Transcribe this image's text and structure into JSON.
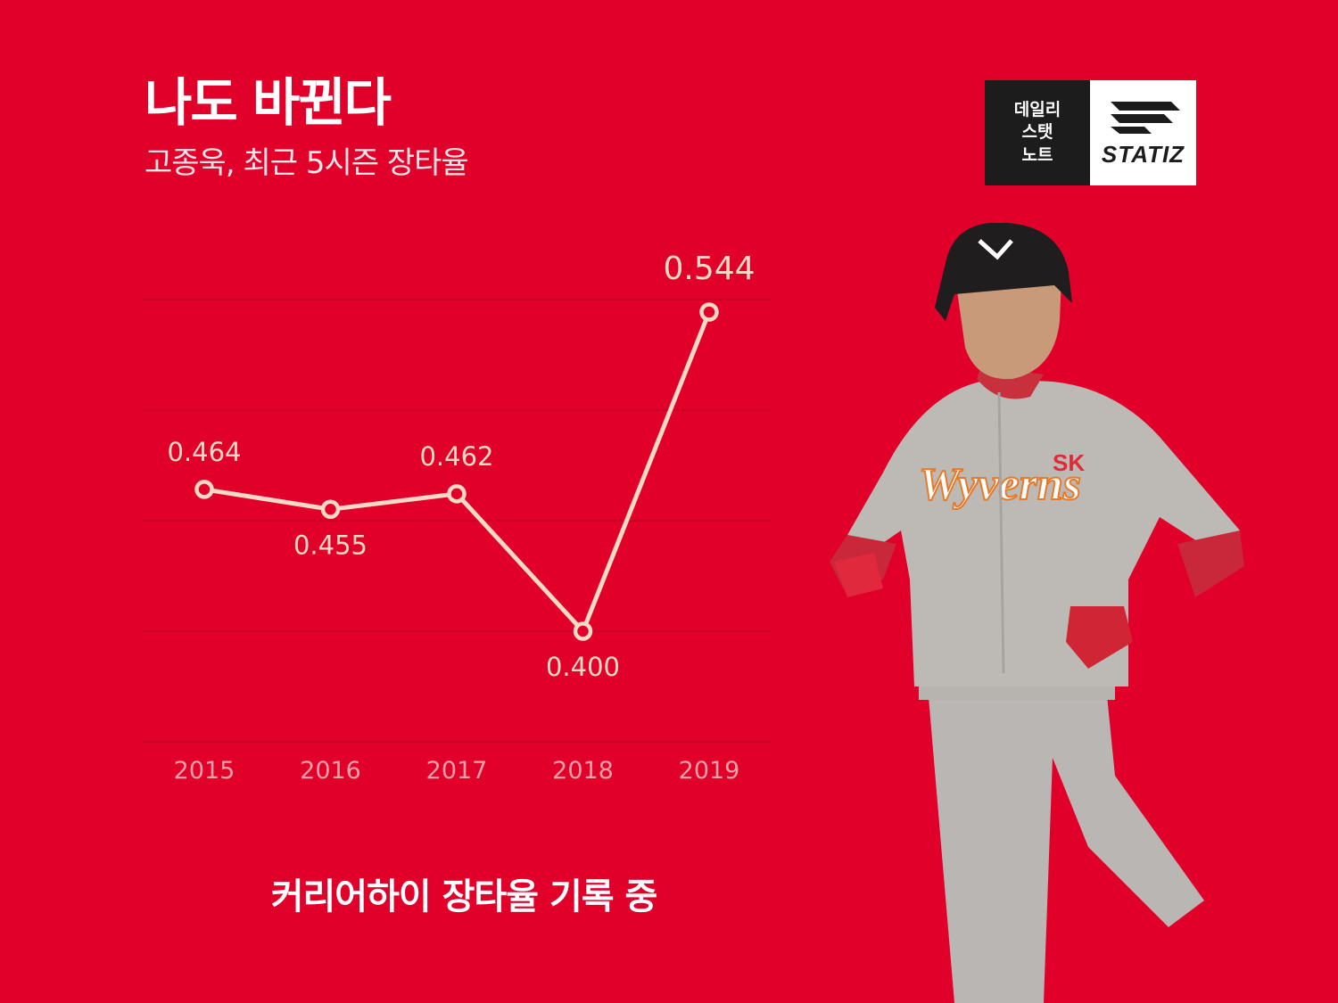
{
  "header": {
    "title": "나도 바뀐다",
    "subtitle": "고종욱, 최근 5시즌 장타율"
  },
  "logo": {
    "text_lines": [
      "데일리",
      "스탯",
      "노트"
    ],
    "brand": "STATIZ"
  },
  "caption": "커리어하이 장타율 기록 중",
  "colors": {
    "background": "#e0002a",
    "line": "#fbd9c6",
    "point_fill": "#e0002a",
    "label": "#fbd9c6",
    "tick": "#f6a0a8",
    "grid": "#c60024"
  },
  "chart_data": {
    "type": "line",
    "title": "",
    "categories": [
      "2015",
      "2016",
      "2017",
      "2018",
      "2019"
    ],
    "values": [
      0.464,
      0.455,
      0.462,
      0.4,
      0.544
    ],
    "data_labels": [
      "0.464",
      "0.455",
      "0.462",
      "0.400",
      "0.544"
    ],
    "xlabel": "",
    "ylabel": "",
    "ylim": [
      0.36,
      0.54
    ],
    "grid": true
  },
  "player_image": {
    "icon": "baseball-player-photo",
    "jersey_text": "Wyverns",
    "team_badge": "SK"
  }
}
